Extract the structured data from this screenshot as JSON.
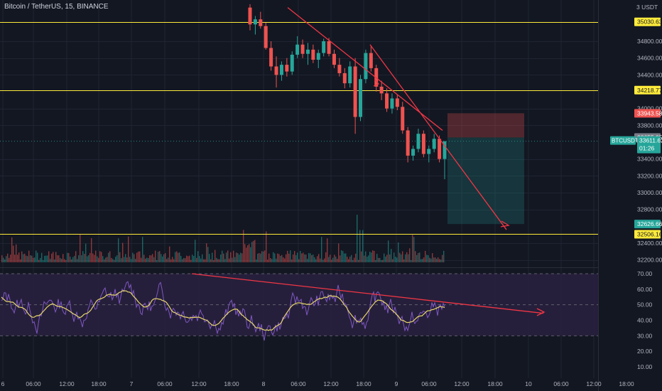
{
  "header": {
    "title": "Bitcoin / TetherUS, 15, BINANCE",
    "currency": "3 USDT"
  },
  "colors": {
    "background": "#131722",
    "grid": "#1f2433",
    "up": "#26a69a",
    "down": "#ef5350",
    "horizontal_line": "#ffeb3b",
    "trendline": "#f23645",
    "rsi": "#7e57c2",
    "rsi_ma": "#e7d76a",
    "rsi_band": "#2a2140"
  },
  "chart_data": [
    {
      "type": "candlestick",
      "symbol": "Bitcoin / TetherUS",
      "interval": "15",
      "exchange": "BINANCE",
      "y_range": [
        32200,
        35200
      ],
      "y_ticks": [
        "34800.00",
        "34600.00",
        "34400.00",
        "34000.00",
        "33800.00",
        "33400.00",
        "33200.00",
        "33000.00",
        "32800.00",
        "32400.00",
        "32200.00"
      ],
      "x_ticks": [
        "6",
        "06:00",
        "12:00",
        "18:00",
        "7",
        "06:00",
        "12:00",
        "18:00",
        "8",
        "06:00",
        "12:00",
        "18:00",
        "9",
        "06:00",
        "12:00",
        "18:00",
        "10",
        "06:00",
        "12:00",
        "18:00"
      ],
      "horizontal_levels": [
        {
          "label": "35030.63",
          "value": 35030.63
        },
        {
          "label": "34218.77",
          "value": 34218.77
        },
        {
          "label": "32506.16",
          "value": 32506.16
        }
      ],
      "position": {
        "stop_label": "33943.58",
        "stop": 33943.58,
        "entry_label": "33655.95",
        "entry": 33655.95,
        "target_label": "32626.66",
        "target": 32626.66
      },
      "current_price": {
        "symbol": "BTCUSDT",
        "price": "33611.62",
        "countdown": "01:26",
        "value": 33611.62
      },
      "candles_approx": [
        [
          35200,
          35240,
          34930,
          35000
        ],
        [
          35000,
          35100,
          34880,
          35060
        ],
        [
          35060,
          35150,
          34950,
          34980
        ],
        [
          34980,
          35020,
          34700,
          34720
        ],
        [
          34720,
          34800,
          34450,
          34500
        ],
        [
          34500,
          34620,
          34250,
          34400
        ],
        [
          34400,
          34560,
          34330,
          34520
        ],
        [
          34520,
          34600,
          34380,
          34440
        ],
        [
          34440,
          34680,
          34400,
          34640
        ],
        [
          34640,
          34860,
          34600,
          34760
        ],
        [
          34760,
          34820,
          34600,
          34650
        ],
        [
          34650,
          34780,
          34520,
          34700
        ],
        [
          34700,
          34760,
          34540,
          34580
        ],
        [
          34580,
          34700,
          34480,
          34660
        ],
        [
          34660,
          34830,
          34620,
          34800
        ],
        [
          34800,
          34840,
          34620,
          34650
        ],
        [
          34650,
          34700,
          34480,
          34520
        ],
        [
          34520,
          34600,
          34380,
          34420
        ],
        [
          34420,
          34480,
          34240,
          34300
        ],
        [
          34300,
          34560,
          34250,
          34500
        ],
        [
          34500,
          34600,
          33700,
          33900
        ],
        [
          33900,
          34400,
          33850,
          34350
        ],
        [
          34350,
          34700,
          34300,
          34660
        ],
        [
          34660,
          34740,
          34440,
          34480
        ],
        [
          34480,
          34520,
          34200,
          34260
        ],
        [
          34260,
          34330,
          34100,
          34180
        ],
        [
          34180,
          34240,
          33960,
          34000
        ],
        [
          34000,
          34180,
          33940,
          34120
        ],
        [
          34120,
          34160,
          33980,
          34020
        ],
        [
          34020,
          34080,
          33700,
          33740
        ],
        [
          33740,
          33780,
          33360,
          33440
        ],
        [
          33440,
          33560,
          33380,
          33520
        ],
        [
          33520,
          33760,
          33480,
          33700
        ],
        [
          33700,
          33740,
          33420,
          33460
        ],
        [
          33460,
          33560,
          33360,
          33520
        ],
        [
          33520,
          33700,
          33480,
          33640
        ],
        [
          33640,
          33680,
          33360,
          33400
        ],
        [
          33400,
          33520,
          33160,
          33611.62
        ]
      ]
    },
    {
      "type": "line",
      "name": "RSI",
      "y_range": [
        5,
        75
      ],
      "y_ticks": [
        "70.00",
        "60.00",
        "50.00",
        "40.00",
        "30.00",
        "20.00",
        "10.00"
      ],
      "band": [
        30,
        70
      ],
      "midline": 50
    }
  ]
}
